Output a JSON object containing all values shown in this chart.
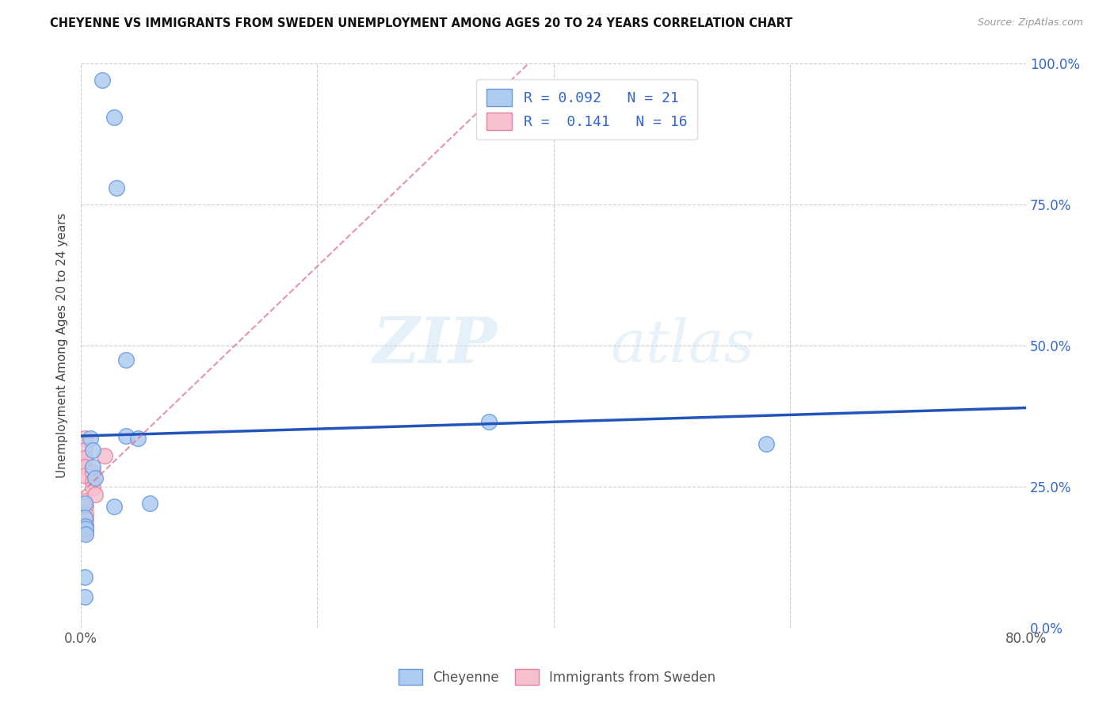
{
  "title": "CHEYENNE VS IMMIGRANTS FROM SWEDEN UNEMPLOYMENT AMONG AGES 20 TO 24 YEARS CORRELATION CHART",
  "source": "Source: ZipAtlas.com",
  "ylabel": "Unemployment Among Ages 20 to 24 years",
  "xmin": 0.0,
  "xmax": 0.8,
  "ymin": 0.0,
  "ymax": 1.0,
  "xtick_values": [
    0.0,
    0.2,
    0.4,
    0.6,
    0.8
  ],
  "xtick_labels_show": [
    "0.0%",
    "",
    "",
    "",
    "80.0%"
  ],
  "ytick_values": [
    0.0,
    0.25,
    0.5,
    0.75,
    1.0
  ],
  "ytick_labels_right": [
    "0.0%",
    "25.0%",
    "50.0%",
    "75.0%",
    "100.0%"
  ],
  "cheyenne_color": "#aeccf0",
  "cheyenne_edge": "#6699dd",
  "sweden_color": "#f5c0d0",
  "sweden_edge": "#e88098",
  "trend_cheyenne_color": "#2255bb",
  "trend_sweden_color": "#dd7090",
  "r_cheyenne": 0.092,
  "n_cheyenne": 21,
  "r_sweden": 0.141,
  "n_sweden": 16,
  "watermark_zip": "ZIP",
  "watermark_atlas": "atlas",
  "cheyenne_x": [
    0.018,
    0.028,
    0.03,
    0.038,
    0.008,
    0.01,
    0.01,
    0.012,
    0.003,
    0.003,
    0.004,
    0.004,
    0.004,
    0.003,
    0.003,
    0.028,
    0.038,
    0.345,
    0.58,
    0.048,
    0.058
  ],
  "cheyenne_y": [
    0.97,
    0.905,
    0.78,
    0.475,
    0.335,
    0.315,
    0.285,
    0.265,
    0.22,
    0.195,
    0.18,
    0.175,
    0.165,
    0.09,
    0.055,
    0.215,
    0.34,
    0.365,
    0.325,
    0.335,
    0.22
  ],
  "sweden_x": [
    0.003,
    0.003,
    0.003,
    0.003,
    0.003,
    0.003,
    0.004,
    0.004,
    0.004,
    0.004,
    0.004,
    0.01,
    0.01,
    0.01,
    0.012,
    0.02
  ],
  "sweden_y": [
    0.335,
    0.315,
    0.3,
    0.285,
    0.27,
    0.225,
    0.215,
    0.2,
    0.19,
    0.18,
    0.17,
    0.275,
    0.26,
    0.248,
    0.235,
    0.305
  ],
  "marker_size": 200,
  "background_color": "#ffffff",
  "grid_color": "#cccccc",
  "legend_label_cheyenne": "Cheyenne",
  "legend_label_sweden": "Immigrants from Sweden"
}
